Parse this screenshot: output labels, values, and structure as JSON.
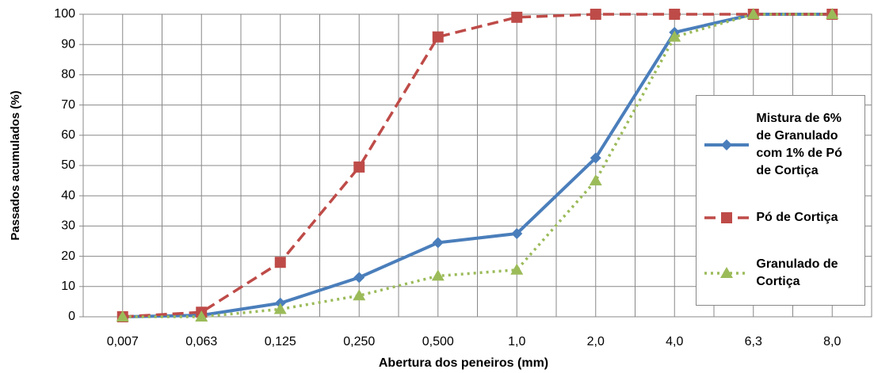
{
  "chart_data": {
    "type": "line",
    "x_label": "Abertura dos peneiros (mm)",
    "y_label": "Passados  acumulados  (%)",
    "categories": [
      "0,007",
      "0,063",
      "0,125",
      "0,250",
      "0,500",
      "1,0",
      "2,0",
      "4,0",
      "6,3",
      "8,0"
    ],
    "series": [
      {
        "name": "Mistura de 6% de Granulado com 1% de Pó de Cortiça",
        "color": "#4a7ebb",
        "line_style": "solid",
        "marker": "diamond",
        "values": [
          0,
          0.5,
          4.5,
          13,
          24.5,
          27.5,
          52.5,
          94,
          100,
          100
        ]
      },
      {
        "name": "Pó de Cortiça",
        "color": "#be4b48",
        "line_style": "dashed",
        "marker": "square",
        "values": [
          0,
          1.5,
          18,
          49.5,
          92.5,
          99,
          100,
          100,
          100,
          100
        ]
      },
      {
        "name": "Granulado de Cortiça",
        "color": "#9bbb59",
        "line_style": "dotted",
        "marker": "triangle",
        "values": [
          0,
          0,
          2.5,
          7,
          13.5,
          15.5,
          45,
          92.5,
          100,
          100
        ]
      }
    ],
    "ylim": [
      0,
      100
    ],
    "yticks": [
      0,
      10,
      20,
      30,
      40,
      50,
      60,
      70,
      80,
      90,
      100
    ],
    "grid": true,
    "legend_position": "right"
  }
}
